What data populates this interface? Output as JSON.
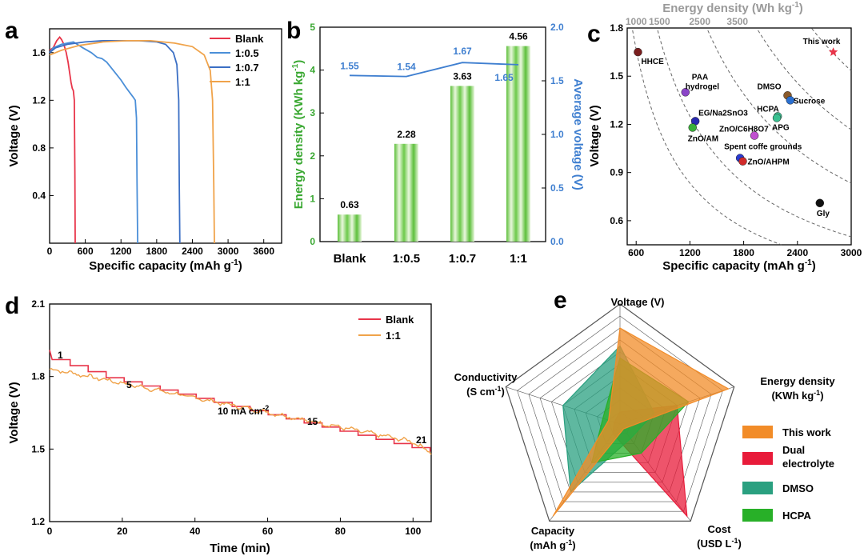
{
  "chart_data": [
    {
      "panel": "a",
      "type": "line",
      "xlabel": "Specific capacity (mAh g",
      "xlabel_sup": "-1",
      "xlabel_tail": ")",
      "ylabel": "Voltage (V)",
      "xlim": [
        0,
        3900
      ],
      "ylim": [
        0,
        1.8
      ],
      "xticks": [
        "0",
        "600",
        "1200",
        "1800",
        "2400",
        "3000",
        "3600"
      ],
      "yticks": [
        "0.4",
        "0.8",
        "1.2",
        "1.6"
      ],
      "legend_position": "top-right",
      "series": [
        {
          "name": "Blank",
          "color": "#e8354a",
          "x": [
            0,
            60,
            120,
            170,
            200,
            240,
            280,
            310,
            340,
            360,
            380,
            400,
            415,
            425,
            430
          ],
          "y": [
            1.62,
            1.64,
            1.7,
            1.73,
            1.71,
            1.67,
            1.6,
            1.52,
            1.42,
            1.35,
            1.3,
            1.28,
            1.2,
            0.6,
            0.0
          ]
        },
        {
          "name": "1:0.5",
          "color": "#4b8fd8",
          "x": [
            0,
            60,
            200,
            400,
            560,
            700,
            800,
            880,
            960,
            1040,
            1120,
            1200,
            1280,
            1340,
            1400,
            1440,
            1460,
            1470,
            1480
          ],
          "y": [
            1.6,
            1.64,
            1.67,
            1.69,
            1.64,
            1.6,
            1.56,
            1.55,
            1.52,
            1.47,
            1.42,
            1.37,
            1.31,
            1.27,
            1.23,
            1.2,
            1.05,
            0.5,
            0.0
          ]
        },
        {
          "name": "1:0.7",
          "color": "#3b6fc4",
          "x": [
            0,
            100,
            300,
            600,
            900,
            1200,
            1500,
            1800,
            1950,
            2080,
            2140,
            2170,
            2180,
            2190
          ],
          "y": [
            1.6,
            1.64,
            1.67,
            1.69,
            1.7,
            1.7,
            1.7,
            1.69,
            1.67,
            1.6,
            1.5,
            1.2,
            0.5,
            0.0
          ]
        },
        {
          "name": "1:1",
          "color": "#f0a34a",
          "x": [
            0,
            200,
            500,
            900,
            1300,
            1700,
            2100,
            2400,
            2600,
            2700,
            2740,
            2760,
            2770
          ],
          "y": [
            1.58,
            1.62,
            1.66,
            1.69,
            1.7,
            1.7,
            1.68,
            1.65,
            1.58,
            1.45,
            1.2,
            0.5,
            0.0
          ]
        }
      ]
    },
    {
      "panel": "b",
      "type": "bar",
      "categories": [
        "Blank",
        "1:0.5",
        "1:0.7",
        "1:1"
      ],
      "values": [
        0.63,
        2.28,
        3.63,
        4.56
      ],
      "value_labels": [
        "0.63",
        "2.28",
        "3.63",
        "4.56"
      ],
      "ylabel": "Energy density (KWh kg",
      "ylabel_sup": "-1",
      "ylabel_tail": ")",
      "ylim": [
        0,
        5
      ],
      "yticks": [
        "0",
        "1",
        "2",
        "3",
        "4",
        "5"
      ],
      "y2label": "Average voltage (V)",
      "y2lim": [
        0,
        2.0
      ],
      "y2ticks": [
        "0.0",
        "0.5",
        "1.0",
        "1.5",
        "2.0"
      ],
      "line_series": {
        "name": "Average voltage",
        "values": [
          1.55,
          1.54,
          1.67,
          1.65
        ],
        "labels": [
          "1.55",
          "1.54",
          "1.67",
          "1.65"
        ]
      },
      "colors": {
        "bar": "#8fd16a",
        "line": "#3f7fd0",
        "left_axis": "#3aa832",
        "right_axis": "#3f7fd0"
      }
    },
    {
      "panel": "c",
      "type": "scatter",
      "xlabel": "Specific capacity (mAh g",
      "xlabel_sup": "-1",
      "xlabel_tail": ")",
      "ylabel": "Voltage (V)",
      "top_label": "Energy density (Wh kg",
      "top_label_sup": "-1",
      "top_label_tail": ")",
      "xlim": [
        500,
        3000
      ],
      "ylim": [
        0.45,
        1.8
      ],
      "xticks": [
        "600",
        "1200",
        "1800",
        "2400",
        "3000"
      ],
      "yticks": [
        "0.6",
        "0.9",
        "1.2",
        "1.5",
        "1.8"
      ],
      "top_ticks": [
        "1000",
        "1500",
        "2500",
        "3500"
      ],
      "top_tick_values": [
        600,
        860,
        1310,
        1730
      ],
      "energy_curves": [
        1000,
        1500,
        2500,
        3500,
        4600
      ],
      "points": [
        {
          "label": "HHCE",
          "x": 620,
          "y": 1.65,
          "color": "#7a1e1e"
        },
        {
          "label": "PAA hydrogel",
          "line1": "PAA",
          "line2": "hydrogel",
          "x": 1150,
          "y": 1.4,
          "color": "#8b45c8"
        },
        {
          "label": "EG/Na2SnO3",
          "x": 1260,
          "y": 1.22,
          "color": "#2a2ab0"
        },
        {
          "label": "ZnO/AM",
          "x": 1230,
          "y": 1.18,
          "color": "#3ab03a"
        },
        {
          "label": "DMSO",
          "x": 2290,
          "y": 1.38,
          "color": "#8a5a2a"
        },
        {
          "label": "Sucrose",
          "x": 2320,
          "y": 1.35,
          "color": "#2a6fd0"
        },
        {
          "label": "HCPA",
          "x": 2180,
          "y": 1.25,
          "color": "#3ac090"
        },
        {
          "label": "APG",
          "x": 2170,
          "y": 1.24,
          "color": "#3ac090"
        },
        {
          "label": "ZnO/C6H8O7",
          "x": 1920,
          "y": 1.13,
          "color": "#c050d0"
        },
        {
          "label": "Spent coffe grounds",
          "x": 1760,
          "y": 0.99,
          "color": "#2a3ad0"
        },
        {
          "label": "ZnO/AHPM",
          "x": 1790,
          "y": 0.97,
          "color": "#d02a2a"
        },
        {
          "label": "Gly",
          "x": 2650,
          "y": 0.71,
          "color": "#111111"
        },
        {
          "label": "This work",
          "x": 2800,
          "y": 1.65,
          "color": "#e8354a",
          "marker": "star"
        }
      ]
    },
    {
      "panel": "d",
      "type": "line",
      "xlabel": "Time (min)",
      "ylabel": "Voltage (V)",
      "xlim": [
        0,
        105
      ],
      "ylim": [
        1.2,
        2.1
      ],
      "xticks": [
        "0",
        "20",
        "40",
        "60",
        "80",
        "100"
      ],
      "yticks": [
        "1.2",
        "1.5",
        "1.8",
        "2.1"
      ],
      "annotations": [
        "1",
        "5",
        "10 mA cm",
        "15",
        "21"
      ],
      "annotation_sup": "-2",
      "series": [
        {
          "name": "Blank",
          "color": "#e8354a",
          "x": [
            0,
            105
          ],
          "y": [
            1.91,
            1.5
          ]
        },
        {
          "name": "1:1",
          "color": "#f0a34a",
          "x": [
            0,
            105
          ],
          "y": [
            1.83,
            1.46
          ]
        }
      ]
    },
    {
      "panel": "e",
      "type": "radar",
      "axes": [
        "Voltage (V)",
        "Energy density",
        "Cost",
        "Capacity",
        "Conductivity"
      ],
      "axis_sublabels": [
        "",
        "(KWh kg",
        "(USD L",
        "(mAh g",
        "(S cm"
      ],
      "axis_sups": [
        "",
        "-1",
        "-1",
        "-1",
        "-1"
      ],
      "series": [
        {
          "name": "This work",
          "color": "#f28c28",
          "values": [
            0.8,
            0.95,
            0.05,
            0.95,
            0.1
          ]
        },
        {
          "name": "Dual electrolyte",
          "line1": "Dual",
          "line2": "electrolyte",
          "color": "#e81b3a",
          "values": [
            0.1,
            0.5,
            0.95,
            0.1,
            0.05
          ]
        },
        {
          "name": "DMSO",
          "color": "#2aa080",
          "values": [
            0.65,
            0.3,
            0.15,
            0.7,
            0.5
          ]
        },
        {
          "name": "HCPA",
          "color": "#28b028",
          "values": [
            0.55,
            0.6,
            0.3,
            0.4,
            0.15
          ]
        }
      ]
    }
  ],
  "panel_labels": [
    "a",
    "b",
    "c",
    "d",
    "e"
  ]
}
